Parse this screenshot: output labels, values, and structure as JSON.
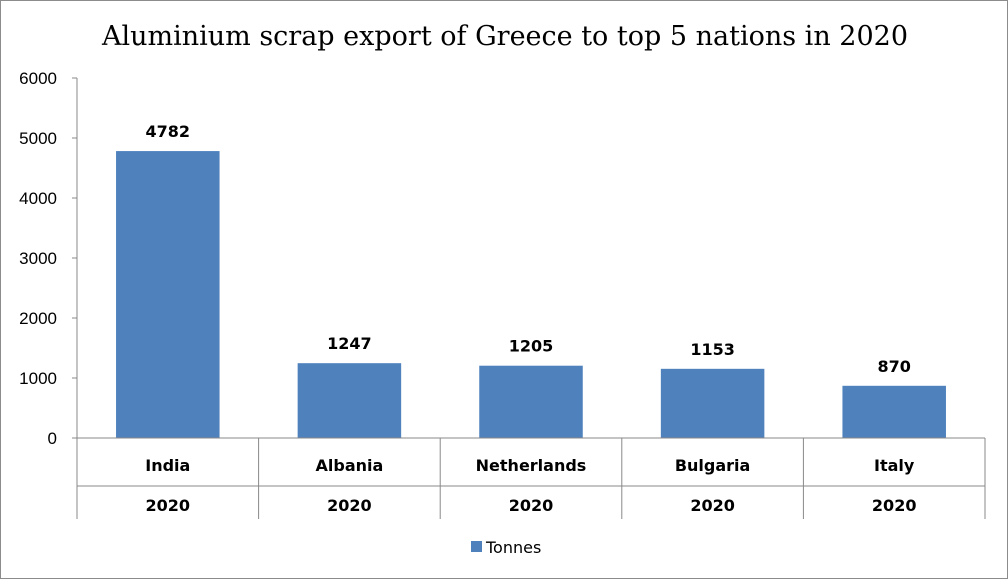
{
  "chart_data": {
    "type": "bar",
    "title": "Aluminium scrap export of Greece to top 5 nations in 2020",
    "categories": [
      "India",
      "Albania",
      "Netherlands",
      "Bulgaria",
      "Italy"
    ],
    "category_group_labels": [
      "2020",
      "2020",
      "2020",
      "2020",
      "2020"
    ],
    "series": [
      {
        "name": "Tonnes",
        "values": [
          4782,
          1247,
          1205,
          1153,
          870
        ],
        "color": "#4f81bd"
      }
    ],
    "ylim": [
      0,
      6000
    ],
    "yticks": [
      0,
      1000,
      2000,
      3000,
      4000,
      5000,
      6000
    ],
    "grid": false,
    "legend_position": "bottom",
    "data_labels": true
  }
}
